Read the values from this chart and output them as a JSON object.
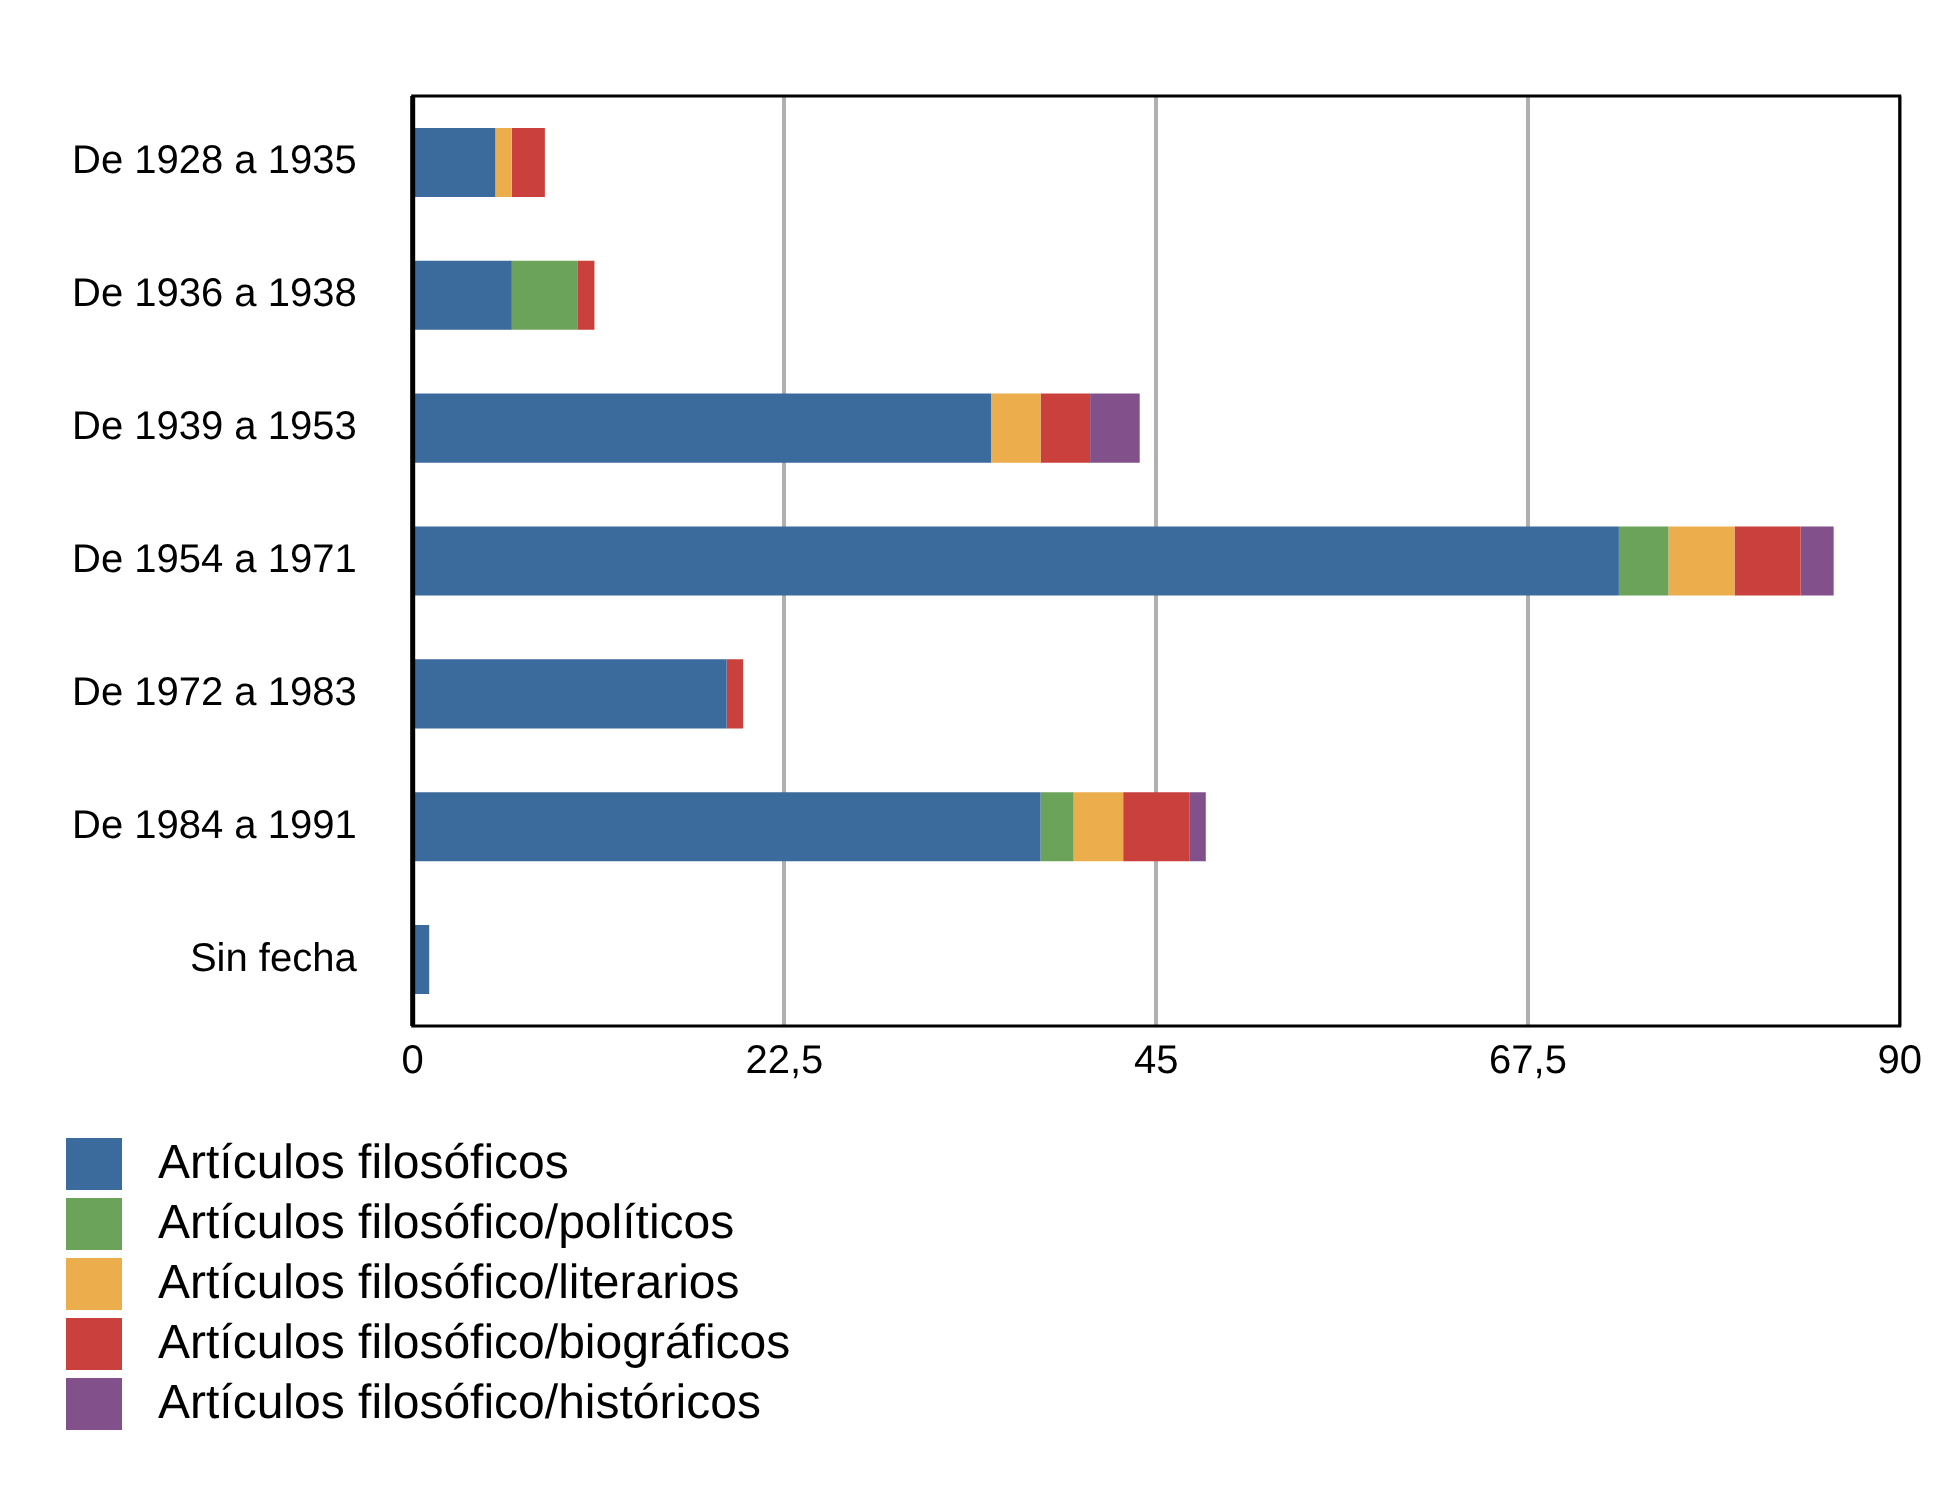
{
  "chart_data": {
    "type": "bar",
    "orientation": "horizontal",
    "stacked": true,
    "categories": [
      "De 1928 a 1935",
      "De 1936 a 1938",
      "De 1939 a 1953",
      "De 1954 a 1971",
      "De 1972 a 1983",
      "De 1984 a 1991",
      "Sin fecha"
    ],
    "series": [
      {
        "name": "Artículos filosóficos",
        "color": "#3b6b9c",
        "values": [
          5,
          6,
          35,
          73,
          19,
          38,
          1
        ]
      },
      {
        "name": "Artículos filosófico/políticos",
        "color": "#6ca35a",
        "values": [
          0,
          4,
          0,
          3,
          0,
          2,
          0
        ]
      },
      {
        "name": "Artículos filosófico/literarios",
        "color": "#ecae4c",
        "values": [
          1,
          0,
          3,
          4,
          0,
          3,
          0
        ]
      },
      {
        "name": "Artículos filosófico/biográficos",
        "color": "#c9403c",
        "values": [
          2,
          1,
          3,
          4,
          1,
          4,
          0
        ]
      },
      {
        "name": "Artículos filosófico/históricos",
        "color": "#82518c",
        "values": [
          0,
          0,
          3,
          2,
          0,
          1,
          0
        ]
      }
    ],
    "xlim": [
      0,
      90
    ],
    "xticks": [
      0,
      {
        "value": 22.5,
        "label": "22,5"
      },
      45,
      {
        "value": 67.5,
        "label": "67,5"
      },
      90
    ],
    "grid": "x",
    "legend": "bottom left"
  }
}
